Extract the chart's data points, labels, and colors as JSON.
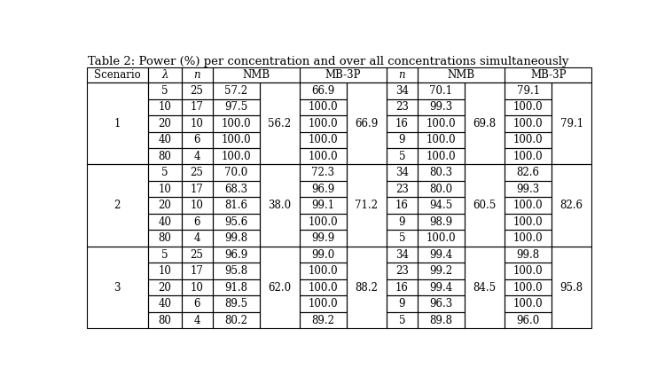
{
  "title": "Table 2: Power (%) per concentration and over all concentrations simultaneously",
  "scenarios": [
    "1",
    "2",
    "3"
  ],
  "lambda_vals": [
    5,
    10,
    20,
    40,
    80,
    5,
    10,
    20,
    40,
    80,
    5,
    10,
    20,
    40,
    80
  ],
  "n_vals": [
    25,
    17,
    10,
    6,
    4,
    25,
    17,
    10,
    6,
    4,
    25,
    17,
    10,
    6,
    4
  ],
  "nmb_per": [
    57.2,
    97.5,
    100.0,
    100.0,
    100.0,
    70.0,
    68.3,
    81.6,
    95.6,
    99.8,
    96.9,
    95.8,
    91.8,
    89.5,
    80.2
  ],
  "nmb_all": [
    56.2,
    56.2,
    56.2,
    56.2,
    56.2,
    38.0,
    38.0,
    38.0,
    38.0,
    38.0,
    62.0,
    62.0,
    62.0,
    62.0,
    62.0
  ],
  "mb3p_per": [
    66.9,
    100.0,
    100.0,
    100.0,
    100.0,
    72.3,
    96.9,
    99.1,
    100.0,
    99.9,
    99.0,
    100.0,
    100.0,
    100.0,
    89.2
  ],
  "mb3p_all": [
    66.9,
    66.9,
    66.9,
    66.9,
    66.9,
    71.2,
    71.2,
    71.2,
    71.2,
    71.2,
    88.2,
    88.2,
    88.2,
    88.2,
    88.2
  ],
  "n2_vals": [
    34,
    23,
    16,
    9,
    5,
    34,
    23,
    16,
    9,
    5,
    34,
    23,
    16,
    9,
    5
  ],
  "nmb_per2": [
    70.1,
    99.3,
    100.0,
    100.0,
    100.0,
    80.3,
    80.0,
    94.5,
    98.9,
    100.0,
    99.4,
    99.2,
    99.4,
    96.3,
    89.8
  ],
  "nmb_all2": [
    69.8,
    69.8,
    69.8,
    69.8,
    69.8,
    60.5,
    60.5,
    60.5,
    60.5,
    60.5,
    84.5,
    84.5,
    84.5,
    84.5,
    84.5
  ],
  "mb3p_per2": [
    79.1,
    100.0,
    100.0,
    100.0,
    100.0,
    82.6,
    99.3,
    100.0,
    100.0,
    100.0,
    99.8,
    100.0,
    100.0,
    100.0,
    96.0
  ],
  "mb3p_all2": [
    79.1,
    79.1,
    79.1,
    79.1,
    79.1,
    82.6,
    82.6,
    82.6,
    82.6,
    82.6,
    95.8,
    95.8,
    95.8,
    95.8,
    95.8
  ],
  "bg_color": "#ffffff",
  "text_color": "#000000",
  "font_size": 8.5,
  "title_font_size": 9.5
}
